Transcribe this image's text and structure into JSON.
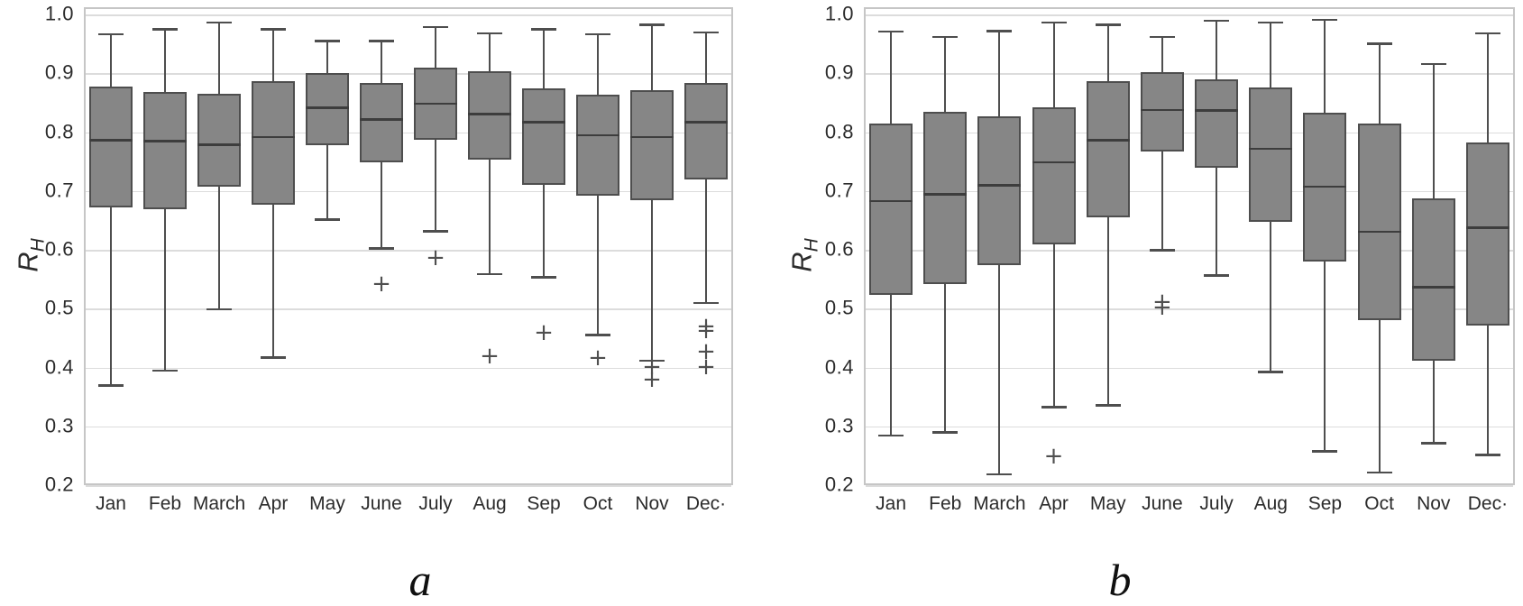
{
  "figure": {
    "ylabel": {
      "base": "R",
      "sub": "H"
    }
  },
  "colors": {
    "box_fill": "#868686",
    "box_border": "#4e4e4e",
    "median": "#3d3d3d",
    "whisker": "#4e4e4e",
    "outlier": "#4f4f4f",
    "gridline": "#dcdcdc",
    "frame": "#c6c6c6",
    "text": "#2b2b2b"
  },
  "chart_data": [
    {
      "id": "a",
      "type": "boxplot",
      "caption": "a",
      "ylabel": "R_H",
      "ylim": [
        0.2,
        1.0
      ],
      "yticks": [
        "1.0",
        "0.9",
        "0.8",
        "0.7",
        "0.6",
        "0.5",
        "0.4",
        "0.3",
        "0.2"
      ],
      "grid": "horizontal",
      "legend": "none",
      "categories": [
        "Jan",
        "Feb",
        "March",
        "Apr",
        "May",
        "June",
        "July",
        "Aug",
        "Sep",
        "Oct",
        "Nov",
        "Dec·"
      ],
      "series": [
        {
          "month": "Jan",
          "whisker_low": 0.373,
          "q1": 0.675,
          "median": 0.79,
          "q3": 0.88,
          "whisker_high": 0.97,
          "outliers": []
        },
        {
          "month": "Feb",
          "whisker_low": 0.398,
          "q1": 0.672,
          "median": 0.788,
          "q3": 0.872,
          "whisker_high": 0.978,
          "outliers": []
        },
        {
          "month": "March",
          "whisker_low": 0.502,
          "q1": 0.71,
          "median": 0.782,
          "q3": 0.868,
          "whisker_high": 0.99,
          "outliers": []
        },
        {
          "month": "Apr",
          "whisker_low": 0.42,
          "q1": 0.68,
          "median": 0.795,
          "q3": 0.89,
          "whisker_high": 0.978,
          "outliers": []
        },
        {
          "month": "May",
          "whisker_low": 0.655,
          "q1": 0.781,
          "median": 0.845,
          "q3": 0.903,
          "whisker_high": 0.958,
          "outliers": []
        },
        {
          "month": "June",
          "whisker_low": 0.606,
          "q1": 0.752,
          "median": 0.825,
          "q3": 0.886,
          "whisker_high": 0.958,
          "outliers": [
            0.543
          ]
        },
        {
          "month": "July",
          "whisker_low": 0.635,
          "q1": 0.79,
          "median": 0.852,
          "q3": 0.912,
          "whisker_high": 0.982,
          "outliers": [
            0.588
          ]
        },
        {
          "month": "Aug",
          "whisker_low": 0.562,
          "q1": 0.756,
          "median": 0.834,
          "q3": 0.906,
          "whisker_high": 0.971,
          "outliers": [
            0.421
          ]
        },
        {
          "month": "Sep",
          "whisker_low": 0.557,
          "q1": 0.714,
          "median": 0.82,
          "q3": 0.877,
          "whisker_high": 0.978,
          "outliers": [
            0.461
          ]
        },
        {
          "month": "Oct",
          "whisker_low": 0.459,
          "q1": 0.695,
          "median": 0.798,
          "q3": 0.867,
          "whisker_high": 0.97,
          "outliers": [
            0.418
          ]
        },
        {
          "month": "Nov",
          "whisker_low": 0.415,
          "q1": 0.687,
          "median": 0.795,
          "q3": 0.875,
          "whisker_high": 0.986,
          "outliers": [
            0.402,
            0.381
          ]
        },
        {
          "month": "Dec",
          "whisker_low": 0.513,
          "q1": 0.723,
          "median": 0.82,
          "q3": 0.886,
          "whisker_high": 0.973,
          "outliers": [
            0.472,
            0.464,
            0.428,
            0.402
          ]
        }
      ]
    },
    {
      "id": "b",
      "type": "boxplot",
      "caption": "b",
      "ylabel": "R_H",
      "ylim": [
        0.2,
        1.0
      ],
      "yticks": [
        "1.0",
        "0.9",
        "0.8",
        "0.7",
        "0.6",
        "0.5",
        "0.4",
        "0.3",
        "0.2"
      ],
      "grid": "horizontal",
      "legend": "none",
      "categories": [
        "Jan",
        "Feb",
        "March",
        "Apr",
        "May",
        "June",
        "July",
        "Aug",
        "Sep",
        "Oct",
        "Nov",
        "Dec·"
      ],
      "series": [
        {
          "month": "Jan",
          "whisker_low": 0.288,
          "q1": 0.527,
          "median": 0.686,
          "q3": 0.818,
          "whisker_high": 0.974,
          "outliers": []
        },
        {
          "month": "Feb",
          "whisker_low": 0.293,
          "q1": 0.545,
          "median": 0.698,
          "q3": 0.838,
          "whisker_high": 0.965,
          "outliers": []
        },
        {
          "month": "March",
          "whisker_low": 0.222,
          "q1": 0.577,
          "median": 0.713,
          "q3": 0.83,
          "whisker_high": 0.975,
          "outliers": []
        },
        {
          "month": "Apr",
          "whisker_low": 0.336,
          "q1": 0.612,
          "median": 0.752,
          "q3": 0.845,
          "whisker_high": 0.99,
          "outliers": [
            0.25
          ]
        },
        {
          "month": "May",
          "whisker_low": 0.339,
          "q1": 0.658,
          "median": 0.79,
          "q3": 0.89,
          "whisker_high": 0.986,
          "outliers": []
        },
        {
          "month": "June",
          "whisker_low": 0.603,
          "q1": 0.77,
          "median": 0.841,
          "q3": 0.905,
          "whisker_high": 0.965,
          "outliers": [
            0.513,
            0.503
          ]
        },
        {
          "month": "July",
          "whisker_low": 0.56,
          "q1": 0.742,
          "median": 0.84,
          "q3": 0.893,
          "whisker_high": 0.993,
          "outliers": []
        },
        {
          "month": "Aug",
          "whisker_low": 0.396,
          "q1": 0.65,
          "median": 0.775,
          "q3": 0.879,
          "whisker_high": 0.99,
          "outliers": []
        },
        {
          "month": "Sep",
          "whisker_low": 0.261,
          "q1": 0.583,
          "median": 0.711,
          "q3": 0.836,
          "whisker_high": 0.994,
          "outliers": []
        },
        {
          "month": "Oct",
          "whisker_low": 0.225,
          "q1": 0.484,
          "median": 0.634,
          "q3": 0.817,
          "whisker_high": 0.954,
          "outliers": []
        },
        {
          "month": "Nov",
          "whisker_low": 0.275,
          "q1": 0.414,
          "median": 0.54,
          "q3": 0.691,
          "whisker_high": 0.919,
          "outliers": []
        },
        {
          "month": "Dec",
          "whisker_low": 0.255,
          "q1": 0.474,
          "median": 0.641,
          "q3": 0.786,
          "whisker_high": 0.971,
          "outliers": []
        }
      ]
    }
  ]
}
